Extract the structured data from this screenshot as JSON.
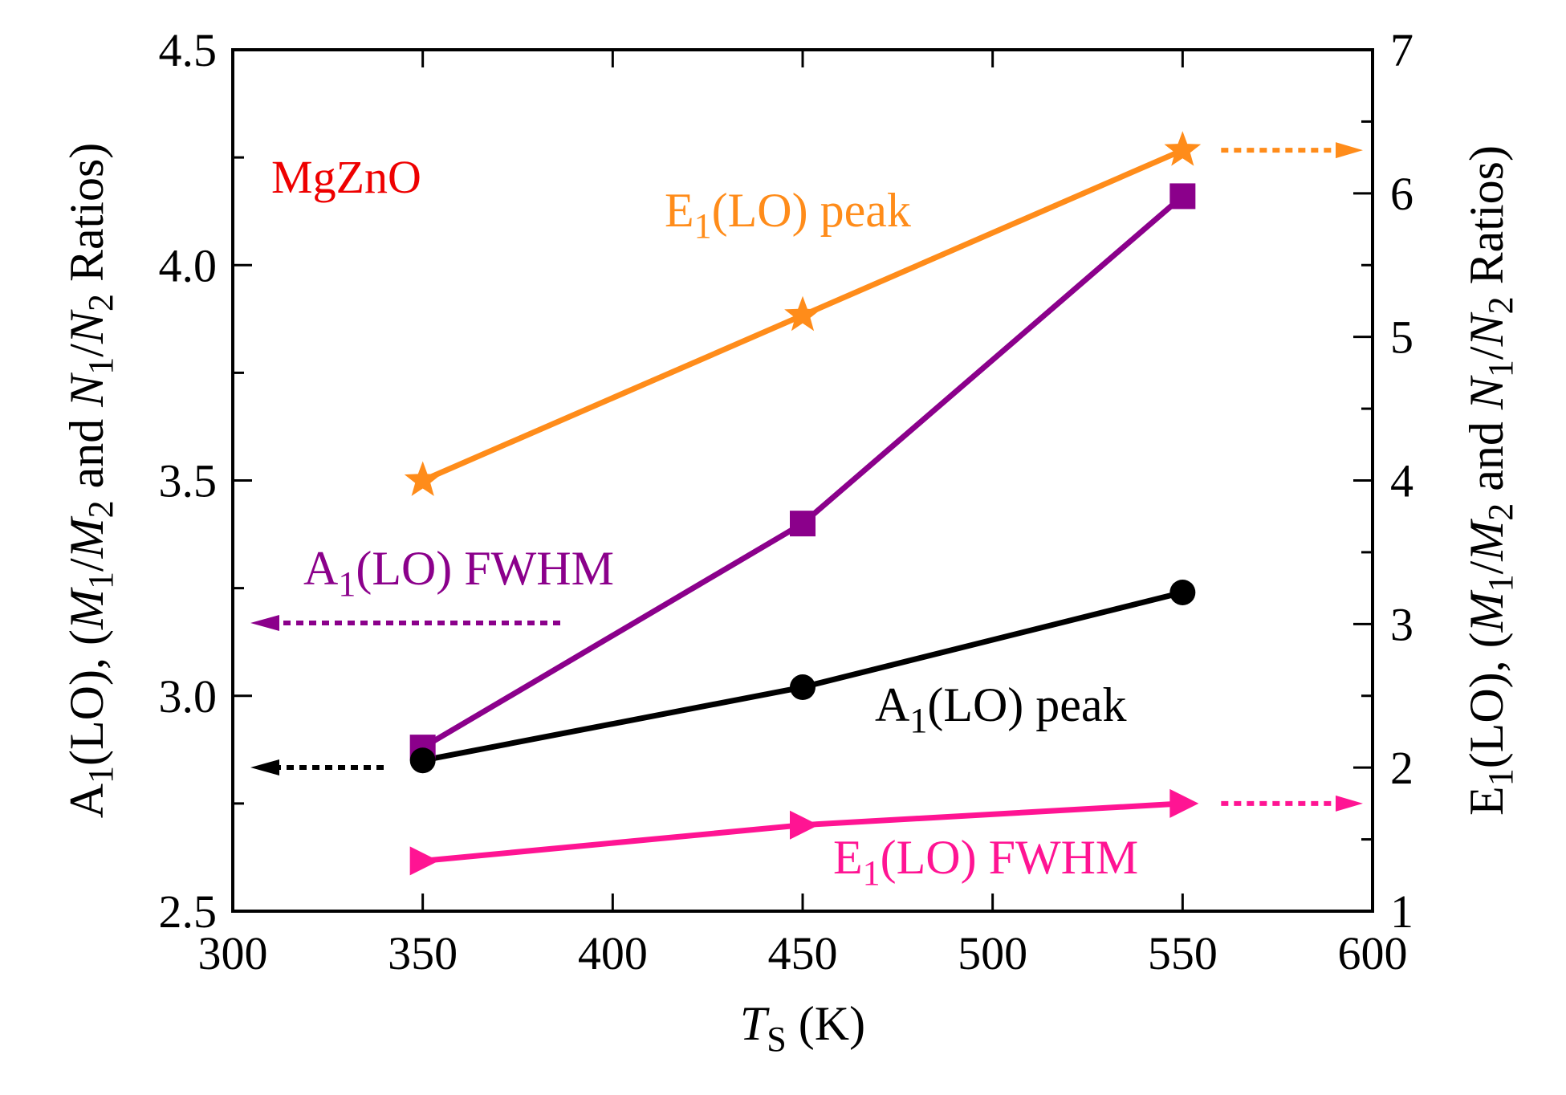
{
  "chart_data": {
    "type": "line",
    "annotation": "MgZnO",
    "x": [
      350,
      450,
      550
    ],
    "xlim": [
      300,
      600
    ],
    "xticks": [
      300,
      350,
      400,
      450,
      500,
      550,
      600
    ],
    "xlabel": {
      "main": "T",
      "sub": "S",
      "rest": " (K)"
    },
    "left_axis": {
      "ylim": [
        2.5,
        4.5
      ],
      "ticks": [
        "2.5",
        "3.0",
        "3.5",
        "4.0",
        "4.5"
      ],
      "label": {
        "base": "A",
        "base_sub": "1",
        "text1": "(LO), (",
        "m1": "M",
        "m1_sub": "1",
        "slash1": "/",
        "m2": "M",
        "m2_sub": "2",
        "mid": " and ",
        "n1": "N",
        "n1_sub": "1",
        "slash2": "/",
        "n2": "N",
        "n2_sub": "2",
        "end": " Ratios)"
      }
    },
    "right_axis": {
      "ylim": [
        1,
        7
      ],
      "ticks": [
        "1",
        "2",
        "3",
        "4",
        "5",
        "6",
        "7"
      ],
      "label": {
        "base": "E",
        "base_sub": "1",
        "text1": "(LO), (",
        "m1": "M",
        "m1_sub": "1",
        "slash1": "/",
        "m2": "M",
        "m2_sub": "2",
        "mid": " and ",
        "n1": "N",
        "n1_sub": "1",
        "slash2": "/",
        "n2": "N",
        "n2_sub": "2",
        "end": " Ratios)"
      }
    },
    "series": [
      {
        "name": "E1(LO) peak",
        "label_main": "E",
        "label_sub": "1",
        "label_rest": "(LO) peak",
        "axis": "right",
        "values": [
          4.0,
          5.15,
          6.3
        ],
        "color": "#ff8c1a",
        "marker": "star",
        "arrow": "right"
      },
      {
        "name": "A1(LO) FWHM",
        "label_main": "A",
        "label_sub": "1",
        "label_rest": "(LO) FWHM",
        "axis": "left",
        "values": [
          2.88,
          3.4,
          4.16
        ],
        "color": "#8b008b",
        "marker": "square",
        "arrow": "left"
      },
      {
        "name": "A1(LO) peak",
        "label_main": "A",
        "label_sub": "1",
        "label_rest": "(LO) peak",
        "axis": "left",
        "values": [
          2.85,
          3.02,
          3.24
        ],
        "color": "#000000",
        "marker": "circle",
        "arrow": "left"
      },
      {
        "name": "E1(LO) FWHM",
        "label_main": "E",
        "label_sub": "1",
        "label_rest": "(LO) FWHM",
        "axis": "right",
        "values": [
          1.35,
          1.6,
          1.75
        ],
        "color": "#ff1493",
        "marker": "triangle-right",
        "arrow": "right"
      }
    ],
    "colors": {
      "annotation": "#ee0000",
      "axis": "#000000"
    }
  }
}
